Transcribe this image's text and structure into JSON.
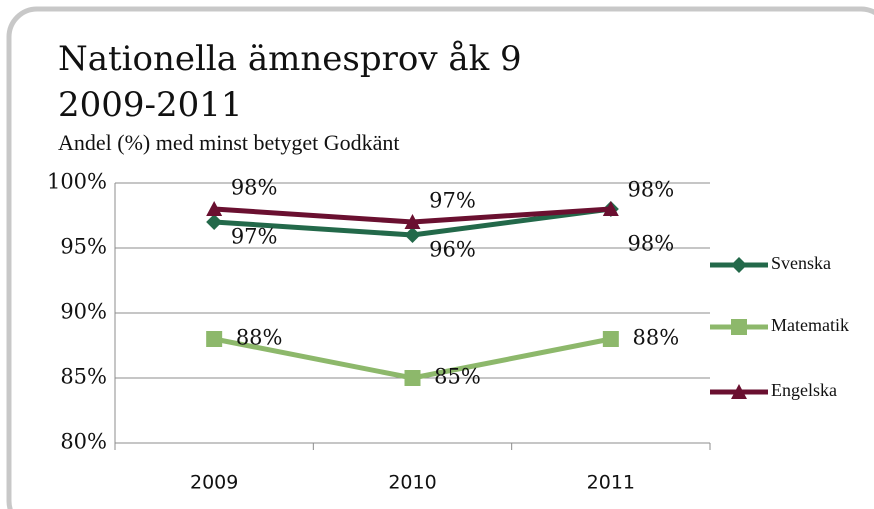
{
  "chart_data": {
    "type": "line",
    "title": "Nationella ämnesprov åk 9 2009-2011",
    "subtitle": "Andel (%) med minst betyget Godkänt",
    "categories": [
      "2009",
      "2010",
      "2011"
    ],
    "series": [
      {
        "name": "Svenska",
        "color": "#23694a",
        "marker": "diamond",
        "values": [
          97,
          96,
          98
        ],
        "value_labels": [
          "97%",
          "96%",
          "98%"
        ]
      },
      {
        "name": "Matematik",
        "color": "#8db86b",
        "marker": "square",
        "values": [
          88,
          85,
          88
        ],
        "value_labels": [
          "88%",
          "85%",
          "88%"
        ]
      },
      {
        "name": "Engelska",
        "color": "#6a1030",
        "marker": "triangle",
        "values": [
          98,
          97,
          98
        ],
        "value_labels": [
          "98%",
          "97%",
          "98%"
        ]
      }
    ],
    "ylim": [
      80,
      100
    ],
    "yticks": [
      {
        "value": 80,
        "label": "80%"
      },
      {
        "value": 85,
        "label": "85%"
      },
      {
        "value": 90,
        "label": "90%"
      },
      {
        "value": 95,
        "label": "95%"
      },
      {
        "value": 100,
        "label": "100%"
      }
    ],
    "grid": true,
    "legend": "right"
  }
}
